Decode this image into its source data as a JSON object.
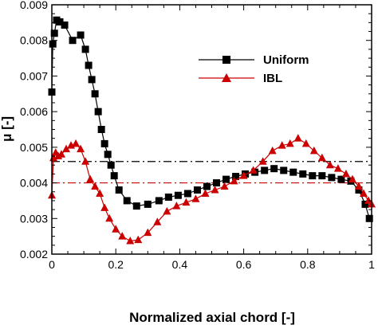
{
  "chart_data": {
    "type": "line",
    "xlabel": "Normalized axial chord [-]",
    "ylabel": "μ [-]",
    "xlim": [
      0,
      1
    ],
    "ylim": [
      0.002,
      0.009
    ],
    "x_ticks": [
      0,
      0.2,
      0.4,
      0.6,
      0.8,
      1
    ],
    "x_tick_labels": [
      "0",
      "0.2",
      "0.4",
      "0.6",
      "0.8",
      "1"
    ],
    "y_ticks": [
      0.002,
      0.003,
      0.004,
      0.005,
      0.006,
      0.007,
      0.008,
      0.009
    ],
    "y_tick_labels": [
      "0.002",
      "0.003",
      "0.004",
      "0.005",
      "0.006",
      "0.007",
      "0.008",
      "0.009"
    ],
    "grid": false,
    "legend_position": "top-right",
    "series": [
      {
        "name": "Uniform",
        "color": "#000000",
        "marker": "square",
        "x": [
          0.0,
          0.003,
          0.008,
          0.015,
          0.025,
          0.04,
          0.065,
          0.09,
          0.105,
          0.115,
          0.125,
          0.135,
          0.145,
          0.155,
          0.165,
          0.175,
          0.185,
          0.195,
          0.21,
          0.235,
          0.265,
          0.3,
          0.335,
          0.365,
          0.395,
          0.425,
          0.455,
          0.485,
          0.515,
          0.545,
          0.575,
          0.605,
          0.635,
          0.665,
          0.695,
          0.725,
          0.755,
          0.785,
          0.815,
          0.845,
          0.875,
          0.905,
          0.935,
          0.96,
          0.98,
          0.993
        ],
        "y": [
          0.00655,
          0.0079,
          0.0082,
          0.00857,
          0.00852,
          0.00843,
          0.008,
          0.00815,
          0.00775,
          0.0073,
          0.0069,
          0.0065,
          0.006,
          0.0055,
          0.0051,
          0.0048,
          0.0045,
          0.0042,
          0.0038,
          0.0035,
          0.00335,
          0.0034,
          0.0035,
          0.0036,
          0.00365,
          0.0037,
          0.0038,
          0.0039,
          0.004,
          0.0041,
          0.00418,
          0.00425,
          0.0043,
          0.00435,
          0.0044,
          0.00435,
          0.0043,
          0.00425,
          0.0042,
          0.0042,
          0.00415,
          0.0041,
          0.00405,
          0.0038,
          0.0034,
          0.003
        ]
      },
      {
        "name": "IBL",
        "color": "#cc0000",
        "marker": "triangle",
        "x": [
          0.0,
          0.005,
          0.012,
          0.02,
          0.03,
          0.045,
          0.06,
          0.075,
          0.09,
          0.105,
          0.12,
          0.135,
          0.15,
          0.165,
          0.18,
          0.2,
          0.22,
          0.245,
          0.27,
          0.3,
          0.33,
          0.36,
          0.39,
          0.42,
          0.45,
          0.48,
          0.51,
          0.54,
          0.57,
          0.6,
          0.63,
          0.66,
          0.69,
          0.72,
          0.745,
          0.77,
          0.795,
          0.82,
          0.845,
          0.87,
          0.895,
          0.92,
          0.94,
          0.96,
          0.975,
          0.99,
          1.0
        ],
        "y": [
          0.00365,
          0.0047,
          0.00485,
          0.00475,
          0.0048,
          0.00495,
          0.00505,
          0.0051,
          0.00495,
          0.0046,
          0.0041,
          0.0039,
          0.0037,
          0.0033,
          0.003,
          0.0027,
          0.0025,
          0.00237,
          0.0024,
          0.0026,
          0.0029,
          0.0032,
          0.00335,
          0.00345,
          0.00355,
          0.0037,
          0.0038,
          0.0039,
          0.00405,
          0.0042,
          0.00435,
          0.0046,
          0.0049,
          0.00505,
          0.0051,
          0.00525,
          0.0051,
          0.0049,
          0.0047,
          0.0045,
          0.0044,
          0.00425,
          0.0041,
          0.0039,
          0.0037,
          0.0035,
          0.0034
        ]
      }
    ],
    "reference_lines": [
      {
        "y": 0.0046,
        "color": "#000000",
        "style": "dash-dot"
      },
      {
        "y": 0.004,
        "color": "#cc0000",
        "style": "dash-dot"
      }
    ]
  }
}
